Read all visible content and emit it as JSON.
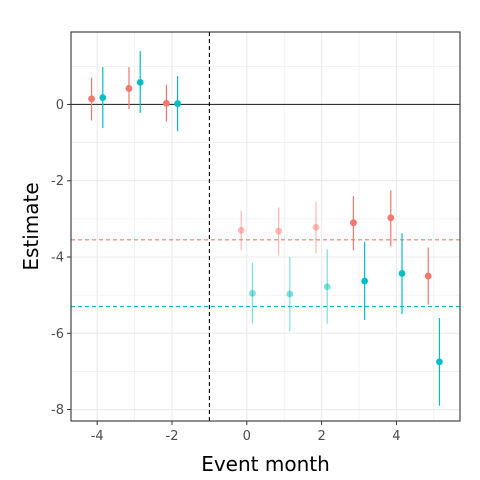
{
  "chart_data": {
    "type": "scatter",
    "xlabel": "Event month",
    "ylabel": "Estimate",
    "xlim": [
      -4.7,
      5.7
    ],
    "ylim": [
      -8.3,
      1.9
    ],
    "x_ticks": [
      -4,
      -2,
      0,
      2,
      4
    ],
    "x_tick_labels": [
      "-4",
      "-2",
      "0",
      "2",
      "4"
    ],
    "y_ticks": [
      0,
      -2,
      -4,
      -6,
      -8
    ],
    "y_tick_labels": [
      "0",
      "-2",
      "-4",
      "-6",
      "-8"
    ],
    "grid": true,
    "legend": "none",
    "reference_lines": {
      "horizontal_zero": 0,
      "vertical_dashed": -1,
      "series_means": [
        -3.55,
        -5.3
      ]
    },
    "series": [
      {
        "color": "#F8766D",
        "points": [
          {
            "x": -4.15,
            "y": 0.15,
            "lo": -0.42,
            "hi": 0.7,
            "faded": false
          },
          {
            "x": -3.15,
            "y": 0.42,
            "lo": -0.12,
            "hi": 0.98,
            "faded": false
          },
          {
            "x": -2.15,
            "y": 0.03,
            "lo": -0.45,
            "hi": 0.52,
            "faded": false
          },
          {
            "x": -0.15,
            "y": -3.3,
            "lo": -3.82,
            "hi": -2.78,
            "faded": true
          },
          {
            "x": 0.85,
            "y": -3.32,
            "lo": -3.95,
            "hi": -2.7,
            "faded": true
          },
          {
            "x": 1.85,
            "y": -3.22,
            "lo": -3.9,
            "hi": -2.55,
            "faded": true
          },
          {
            "x": 2.85,
            "y": -3.1,
            "lo": -3.82,
            "hi": -2.4,
            "faded": false
          },
          {
            "x": 3.85,
            "y": -2.97,
            "lo": -3.72,
            "hi": -2.25,
            "faded": false
          },
          {
            "x": 4.85,
            "y": -4.5,
            "lo": -5.25,
            "hi": -3.75,
            "faded": false
          }
        ]
      },
      {
        "color": "#00BFC4",
        "points": [
          {
            "x": -3.85,
            "y": 0.18,
            "lo": -0.62,
            "hi": 0.98,
            "faded": false
          },
          {
            "x": -2.85,
            "y": 0.58,
            "lo": -0.22,
            "hi": 1.4,
            "faded": false
          },
          {
            "x": -1.85,
            "y": 0.02,
            "lo": -0.7,
            "hi": 0.74,
            "faded": false
          },
          {
            "x": 0.15,
            "y": -4.95,
            "lo": -5.75,
            "hi": -4.15,
            "faded": true
          },
          {
            "x": 1.15,
            "y": -4.97,
            "lo": -5.95,
            "hi": -4.0,
            "faded": true
          },
          {
            "x": 2.15,
            "y": -4.78,
            "lo": -5.75,
            "hi": -3.8,
            "faded": true
          },
          {
            "x": 3.15,
            "y": -4.63,
            "lo": -5.65,
            "hi": -3.6,
            "faded": false
          },
          {
            "x": 4.15,
            "y": -4.43,
            "lo": -5.5,
            "hi": -3.38,
            "faded": false
          },
          {
            "x": 5.15,
            "y": -6.75,
            "lo": -7.9,
            "hi": -5.6,
            "faded": false
          }
        ]
      }
    ]
  }
}
